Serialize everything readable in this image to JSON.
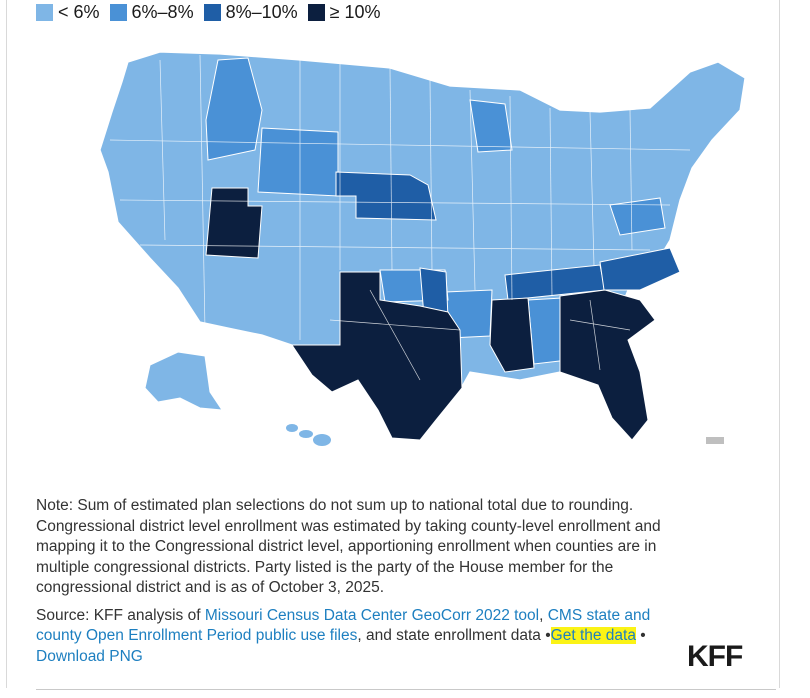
{
  "legend": [
    {
      "label": "< 6%",
      "color": "#7fb6e6"
    },
    {
      "label": "6%–8%",
      "color": "#4a91d6"
    },
    {
      "label": "8%–10%",
      "color": "#1f5ea6"
    },
    {
      "label": "≥ 10%",
      "color": "#0c1f3f"
    }
  ],
  "colors": {
    "border": "#ffffff",
    "light": "#7fb6e6",
    "mid": "#4a91d6",
    "dark": "#1f5ea6",
    "darkest": "#0c1f3f",
    "territory": "#bfbfbf"
  },
  "note": "Note: Sum of estimated plan selections do not sum up to national total due to rounding. Congressional district level enrollment was estimated by taking county-level enrollment and mapping it to the Congressional district level, apportioning enrollment when counties are in multiple congressional districts. Party listed is the party of the House member for the congressional district and is as of October 3, 2025.",
  "source": {
    "prefix": "Source: KFF analysis of ",
    "link1": "Missouri Census Data Center GeoCorr 2022 tool",
    "sep1": ", ",
    "link2": "CMS state and county Open Enrollment Period public use files",
    "middle": ", and state enrollment data ",
    "bullet": "•",
    "get_data": "Get the data",
    "download": "Download PNG"
  },
  "logo": "KFF"
}
